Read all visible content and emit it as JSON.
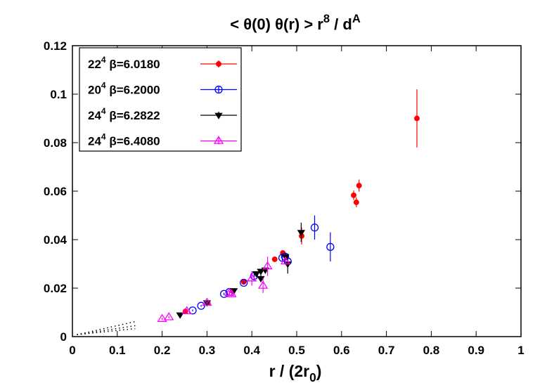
{
  "chart_data": {
    "type": "scatter",
    "title": [
      "< θ(0) θ(r) > r",
      "8",
      " / d",
      "A"
    ],
    "x_label": [
      "r / (2r",
      "0",
      ")"
    ],
    "xlim": [
      0,
      1
    ],
    "ylim": [
      0,
      0.12
    ],
    "xticks": [
      0,
      0.1,
      0.2,
      0.3,
      0.4,
      0.5,
      0.6,
      0.7,
      0.8,
      0.9,
      1
    ],
    "yticks": [
      0,
      0.02,
      0.04,
      0.06,
      0.08,
      0.1,
      0.12
    ],
    "legend": "top-left",
    "series": [
      {
        "name": [
          "22",
          "4",
          " β=6.0180"
        ],
        "color": "#ff0000",
        "marker": "dot",
        "x": [
          0.252,
          0.302,
          0.357,
          0.382,
          0.451,
          0.469,
          0.511,
          0.627,
          0.633,
          0.639,
          0.768
        ],
        "values": [
          0.0104,
          0.0139,
          0.0188,
          0.0226,
          0.0319,
          0.0345,
          0.0415,
          0.0583,
          0.0554,
          0.0623,
          0.09
        ],
        "errors": [
          0.0004,
          0.0004,
          0.0005,
          0.0005,
          0.0006,
          0.0006,
          0.0035,
          0.002,
          0.002,
          0.0025,
          0.012
        ]
      },
      {
        "name": [
          "20",
          "4",
          " β=6.2000"
        ],
        "color": "#0000ff",
        "marker": "circle",
        "x": [
          0.268,
          0.287,
          0.338,
          0.35,
          0.382,
          0.405,
          0.468,
          0.474,
          0.48,
          0.54,
          0.575
        ],
        "values": [
          0.0108,
          0.0127,
          0.0176,
          0.0184,
          0.0222,
          0.025,
          0.0325,
          0.033,
          0.031,
          0.045,
          0.037
        ],
        "errors": [
          0.0004,
          0.0004,
          0.0005,
          0.0005,
          0.0006,
          0.002,
          0.0015,
          0.0015,
          0.002,
          0.005,
          0.006
        ]
      },
      {
        "name": [
          "24",
          "4",
          " β=6.2822"
        ],
        "color": "#000000",
        "marker": "tri-down",
        "x": [
          0.24,
          0.3,
          0.36,
          0.41,
          0.42,
          0.43,
          0.42,
          0.475,
          0.48,
          0.51
        ],
        "values": [
          0.009,
          0.014,
          0.019,
          0.026,
          0.027,
          0.0275,
          0.024,
          0.033,
          0.03,
          0.043
        ],
        "errors": [
          0.0004,
          0.0005,
          0.0006,
          0.0008,
          0.0008,
          0.0008,
          0.0015,
          0.0015,
          0.004,
          0.004
        ]
      },
      {
        "name": [
          "24",
          "4",
          " β=6.4080"
        ],
        "color": "#ff00ff",
        "marker": "tri-up",
        "x": [
          0.2,
          0.215,
          0.255,
          0.3,
          0.35,
          0.355,
          0.4,
          0.425,
          0.435,
          0.475
        ],
        "values": [
          0.0073,
          0.008,
          0.0105,
          0.014,
          0.018,
          0.0175,
          0.024,
          0.021,
          0.029,
          0.031
        ],
        "errors": [
          0.0005,
          0.0005,
          0.0005,
          0.0006,
          0.0008,
          0.0008,
          0.003,
          0.003,
          0.004,
          0.0015
        ]
      }
    ],
    "dotted_lines": [
      {
        "x": [
          0.01,
          0.14
        ],
        "values": [
          0.0008,
          0.0062
        ]
      },
      {
        "x": [
          0.01,
          0.14
        ],
        "values": [
          0.0008,
          0.0045
        ]
      },
      {
        "x": [
          0.01,
          0.14
        ],
        "values": [
          0.0008,
          0.0033
        ]
      }
    ]
  }
}
